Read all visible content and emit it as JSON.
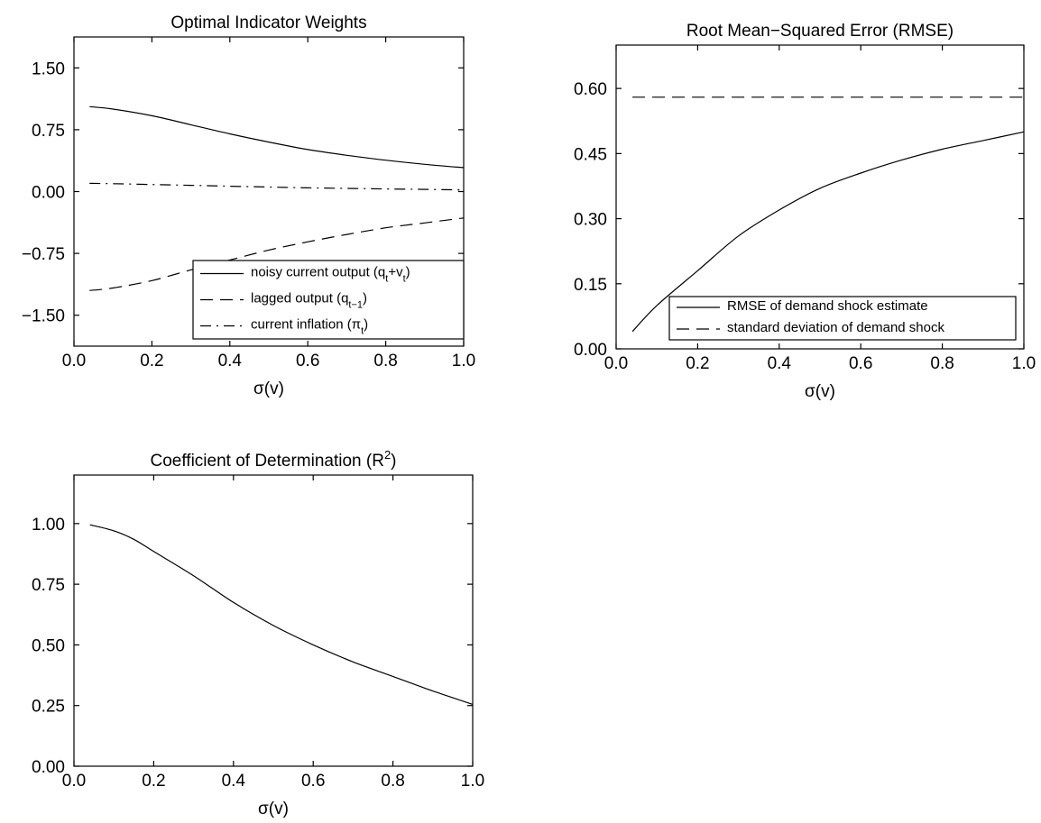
{
  "chart_data": [
    {
      "type": "line",
      "title": "Optimal Indicator Weights",
      "xlabel": "σ(v)",
      "ylabel": "",
      "xlim": [
        0.0,
        1.0
      ],
      "ylim": [
        -1.875,
        1.875
      ],
      "xticks": [
        "0.0",
        "0.2",
        "0.4",
        "0.6",
        "0.8",
        "1.0"
      ],
      "yticks": [
        "−1.50",
        "−0.75",
        "0.00",
        "0.75",
        "1.50"
      ],
      "x": [
        0.04,
        0.1,
        0.2,
        0.3,
        0.4,
        0.5,
        0.6,
        0.7,
        0.8,
        0.9,
        1.0
      ],
      "series": [
        {
          "name": "noisy current output (q_t+v_t)",
          "style": "solid",
          "values": [
            1.03,
            1.0,
            0.92,
            0.81,
            0.7,
            0.6,
            0.51,
            0.44,
            0.38,
            0.33,
            0.29
          ]
        },
        {
          "name": "lagged output (q_t−1)",
          "style": "dashed",
          "values": [
            -1.2,
            -1.17,
            -1.08,
            -0.95,
            -0.83,
            -0.71,
            -0.61,
            -0.52,
            -0.44,
            -0.38,
            -0.32
          ]
        },
        {
          "name": "current inflation (π_t)",
          "style": "dashdot",
          "values": [
            0.1,
            0.095,
            0.085,
            0.075,
            0.065,
            0.055,
            0.045,
            0.038,
            0.032,
            0.026,
            0.02
          ]
        }
      ],
      "legend_entries": [
        {
          "text": "noisy current output (q",
          "sub1": "t",
          "mid": "+v",
          "sub2": "t",
          "end": ")"
        },
        {
          "text": "lagged output (q",
          "sub1": "t−1",
          "end": ")"
        },
        {
          "text": "current inflation (π",
          "sub1": "t",
          "end": ")"
        }
      ],
      "legend": "lower-right",
      "grid": false
    },
    {
      "type": "line",
      "title": "Root Mean−Squared Error (RMSE)",
      "xlabel": "σ(v)",
      "ylabel": "",
      "xlim": [
        0.0,
        1.0
      ],
      "ylim": [
        0.0,
        0.7
      ],
      "xticks": [
        "0.0",
        "0.2",
        "0.4",
        "0.6",
        "0.8",
        "1.0"
      ],
      "yticks": [
        "0.00",
        "0.15",
        "0.30",
        "0.45",
        "0.60"
      ],
      "x": [
        0.04,
        0.1,
        0.2,
        0.3,
        0.4,
        0.5,
        0.6,
        0.7,
        0.8,
        0.9,
        1.0
      ],
      "series": [
        {
          "name": "RMSE of demand shock estimate",
          "style": "solid",
          "values": [
            0.04,
            0.1,
            0.18,
            0.26,
            0.32,
            0.37,
            0.405,
            0.435,
            0.46,
            0.48,
            0.5
          ]
        },
        {
          "name": "standard deviation of demand shock",
          "style": "dashed",
          "values": [
            0.58,
            0.58,
            0.58,
            0.58,
            0.58,
            0.58,
            0.58,
            0.58,
            0.58,
            0.58,
            0.58
          ]
        }
      ],
      "legend_entries": [
        {
          "text": "RMSE of demand shock estimate"
        },
        {
          "text": "standard deviation of demand shock"
        }
      ],
      "legend": "bottom",
      "grid": false
    },
    {
      "type": "line",
      "title": "Coefficient of Determination (R",
      "title_sup": "2",
      "title_end": ")",
      "xlabel": "σ(v)",
      "ylabel": "",
      "xlim": [
        0.0,
        1.0
      ],
      "ylim": [
        0.0,
        1.2
      ],
      "xticks": [
        "0.0",
        "0.2",
        "0.4",
        "0.6",
        "0.8",
        "1.0"
      ],
      "yticks": [
        "0.00",
        "0.25",
        "0.50",
        "0.75",
        "1.00"
      ],
      "x": [
        0.04,
        0.1,
        0.15,
        0.2,
        0.3,
        0.4,
        0.5,
        0.6,
        0.7,
        0.8,
        0.9,
        1.0
      ],
      "series": [
        {
          "name": "",
          "style": "solid",
          "values": [
            0.995,
            0.97,
            0.935,
            0.885,
            0.785,
            0.675,
            0.58,
            0.5,
            0.43,
            0.37,
            0.31,
            0.255
          ]
        }
      ],
      "grid": false
    }
  ]
}
